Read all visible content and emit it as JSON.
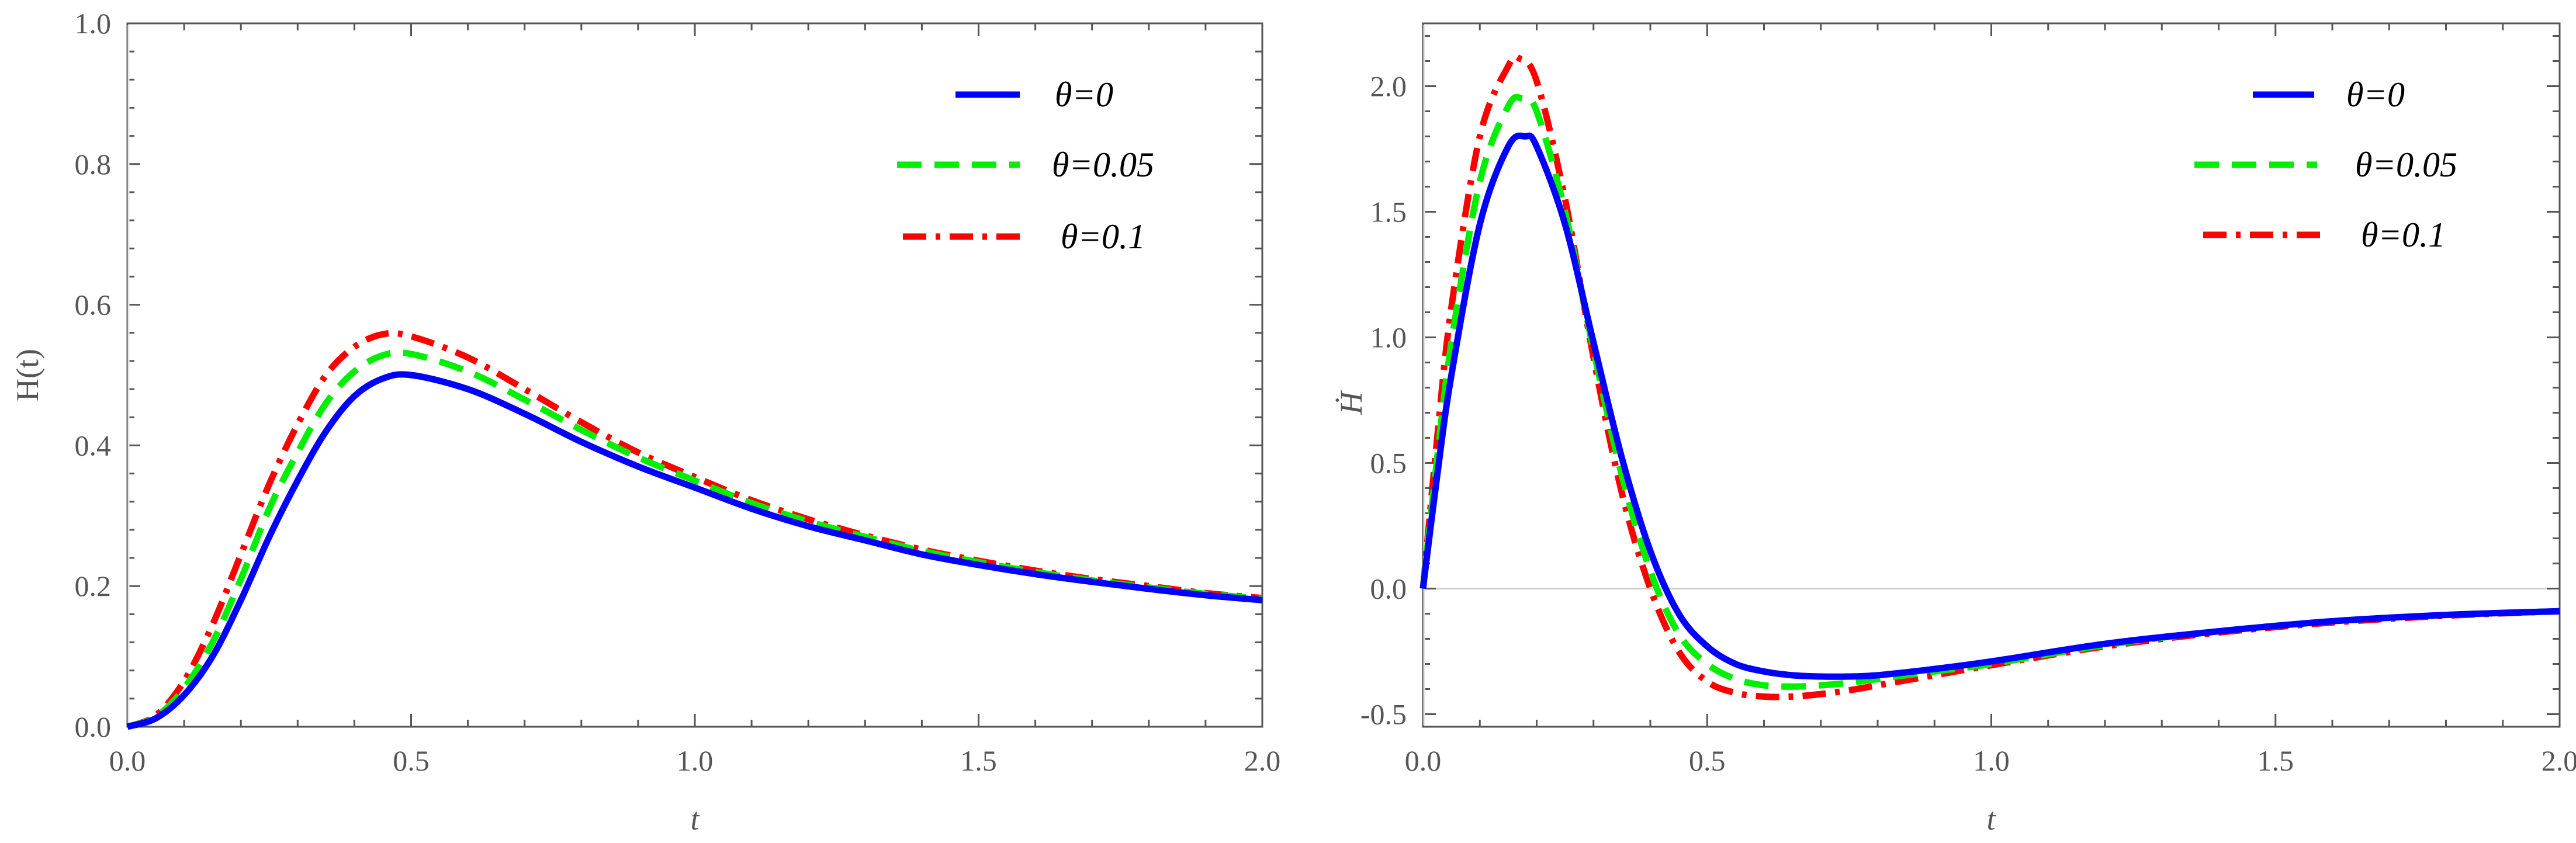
{
  "chart_data": [
    {
      "type": "line",
      "title": "",
      "xlabel": "t",
      "ylabel": "H(t)",
      "xlim": [
        0,
        2.0
      ],
      "ylim": [
        0,
        1.0
      ],
      "xticks": [
        "0.0",
        "0.5",
        "1.0",
        "1.5",
        "2.0"
      ],
      "yticks": [
        "0.0",
        "0.2",
        "0.4",
        "0.6",
        "0.8",
        "1.0"
      ],
      "legend_position": "top-right",
      "series": [
        {
          "name": "θ=0",
          "color": "#0000FF",
          "style": "solid",
          "x": [
            0,
            0.05,
            0.1,
            0.15,
            0.2,
            0.25,
            0.3,
            0.35,
            0.4,
            0.45,
            0.5,
            0.6,
            0.7,
            0.8,
            0.9,
            1.0,
            1.1,
            1.2,
            1.3,
            1.4,
            1.5,
            1.6,
            1.7,
            1.8,
            1.9,
            2.0
          ],
          "y": [
            0,
            0.012,
            0.045,
            0.1,
            0.18,
            0.27,
            0.35,
            0.42,
            0.47,
            0.495,
            0.5,
            0.48,
            0.445,
            0.405,
            0.37,
            0.34,
            0.31,
            0.285,
            0.265,
            0.245,
            0.23,
            0.217,
            0.206,
            0.196,
            0.187,
            0.18
          ]
        },
        {
          "name": "θ=0.05",
          "color": "#00EE00",
          "style": "dashed",
          "x": [
            0,
            0.05,
            0.1,
            0.15,
            0.2,
            0.25,
            0.3,
            0.35,
            0.4,
            0.45,
            0.5,
            0.6,
            0.7,
            0.8,
            0.9,
            1.0,
            1.1,
            1.2,
            1.3,
            1.4,
            1.5,
            1.6,
            1.7,
            1.8,
            1.9,
            2.0
          ],
          "y": [
            0,
            0.014,
            0.055,
            0.12,
            0.21,
            0.31,
            0.39,
            0.46,
            0.505,
            0.528,
            0.53,
            0.505,
            0.465,
            0.422,
            0.383,
            0.35,
            0.318,
            0.292,
            0.27,
            0.25,
            0.234,
            0.22,
            0.208,
            0.198,
            0.189,
            0.182
          ]
        },
        {
          "name": "θ=0.1",
          "color": "#FF0000",
          "style": "dash-dot",
          "x": [
            0,
            0.05,
            0.1,
            0.15,
            0.2,
            0.25,
            0.3,
            0.35,
            0.4,
            0.45,
            0.5,
            0.6,
            0.7,
            0.8,
            0.9,
            1.0,
            1.1,
            1.2,
            1.3,
            1.4,
            1.5,
            1.6,
            1.7,
            1.8,
            1.9,
            2.0
          ],
          "y": [
            0,
            0.016,
            0.065,
            0.145,
            0.245,
            0.345,
            0.43,
            0.5,
            0.54,
            0.558,
            0.555,
            0.525,
            0.48,
            0.433,
            0.39,
            0.355,
            0.322,
            0.295,
            0.272,
            0.252,
            0.236,
            0.222,
            0.21,
            0.2,
            0.19,
            0.183
          ]
        }
      ]
    },
    {
      "type": "line",
      "title": "",
      "xlabel": "t",
      "ylabel": "Ḣ",
      "xlim": [
        0,
        2.0
      ],
      "ylim": [
        -0.55,
        2.25
      ],
      "xticks": [
        "0.0",
        "0.5",
        "1.0",
        "1.5",
        "2.0"
      ],
      "yticks": [
        "-0.5",
        "0.0",
        "0.5",
        "1.0",
        "1.5",
        "2.0"
      ],
      "zero_line": true,
      "legend_position": "top-right",
      "series": [
        {
          "name": "θ=0",
          "color": "#0000FF",
          "style": "solid",
          "x": [
            0,
            0.025,
            0.05,
            0.1,
            0.15,
            0.18,
            0.2,
            0.25,
            0.3,
            0.35,
            0.4,
            0.45,
            0.5,
            0.55,
            0.6,
            0.65,
            0.7,
            0.75,
            0.8,
            0.9,
            1.0,
            1.2,
            1.4,
            1.6,
            1.8,
            2.0
          ],
          "y": [
            0,
            0.45,
            0.85,
            1.45,
            1.76,
            1.8,
            1.76,
            1.45,
            0.98,
            0.52,
            0.15,
            -0.1,
            -0.23,
            -0.3,
            -0.33,
            -0.345,
            -0.35,
            -0.35,
            -0.345,
            -0.32,
            -0.29,
            -0.22,
            -0.17,
            -0.13,
            -0.105,
            -0.09
          ]
        },
        {
          "name": "θ=0.05",
          "color": "#00EE00",
          "style": "dashed",
          "x": [
            0,
            0.025,
            0.05,
            0.1,
            0.15,
            0.175,
            0.2,
            0.25,
            0.3,
            0.35,
            0.4,
            0.45,
            0.5,
            0.55,
            0.6,
            0.65,
            0.7,
            0.75,
            0.8,
            0.9,
            1.0,
            1.2,
            1.4,
            1.6,
            1.8,
            2.0
          ],
          "y": [
            0,
            0.52,
            0.98,
            1.62,
            1.92,
            1.95,
            1.9,
            1.5,
            0.95,
            0.45,
            0.07,
            -0.18,
            -0.3,
            -0.36,
            -0.385,
            -0.39,
            -0.385,
            -0.375,
            -0.36,
            -0.33,
            -0.3,
            -0.225,
            -0.17,
            -0.13,
            -0.105,
            -0.09
          ]
        },
        {
          "name": "θ=0.1",
          "color": "#FF0000",
          "style": "dash-dot",
          "x": [
            0,
            0.025,
            0.05,
            0.1,
            0.15,
            0.17,
            0.2,
            0.25,
            0.3,
            0.35,
            0.4,
            0.45,
            0.5,
            0.55,
            0.6,
            0.65,
            0.7,
            0.75,
            0.8,
            0.9,
            1.0,
            1.2,
            1.4,
            1.6,
            1.8,
            2.0
          ],
          "y": [
            0,
            0.6,
            1.12,
            1.8,
            2.08,
            2.11,
            2.02,
            1.55,
            0.92,
            0.38,
            0.0,
            -0.25,
            -0.37,
            -0.415,
            -0.43,
            -0.43,
            -0.42,
            -0.405,
            -0.385,
            -0.345,
            -0.305,
            -0.23,
            -0.175,
            -0.135,
            -0.108,
            -0.09
          ]
        }
      ]
    }
  ]
}
